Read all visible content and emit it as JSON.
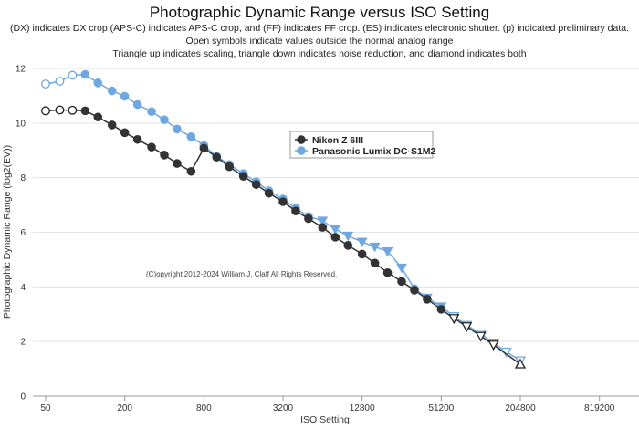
{
  "chart_data": {
    "type": "line",
    "title": "Photographic Dynamic Range versus ISO Setting",
    "subtitle": [
      "(DX) indicates DX crop (APS-C) indicates APS-C crop, and (FF) indicates FF crop. (ES) indicates electronic shutter. (p) indicated preliminary data.",
      "Open symbols indicate values outside the normal analog range",
      "Triangle up indicates scaling, triangle down indicates noise reduction, and diamond indicates both"
    ],
    "xlabel": "ISO Setting",
    "ylabel": "Photographic Dynamic Range (log2(EV))",
    "x_scale": "log2",
    "xlim": [
      50,
      1638400
    ],
    "ylim": [
      0,
      12
    ],
    "x_ticks": [
      "50",
      "200",
      "800",
      "3200",
      "12800",
      "51200",
      "204800",
      "819200"
    ],
    "y_ticks": [
      "0",
      "2",
      "4",
      "6",
      "8",
      "10",
      "12"
    ],
    "copyright": "(C)opyright 2012-2024 William J. Claff All Rights Reserved.",
    "legend_position": "center",
    "colors": {
      "nikon": "#333333",
      "panasonic": "#6fa8e0"
    },
    "series": [
      {
        "name": "Nikon Z 6III",
        "color": "#333333",
        "points": [
          {
            "iso": 50,
            "dr": 10.45,
            "marker": "open-circle"
          },
          {
            "iso": 64,
            "dr": 10.48,
            "marker": "open-circle"
          },
          {
            "iso": 80,
            "dr": 10.47,
            "marker": "open-circle"
          },
          {
            "iso": 100,
            "dr": 10.45,
            "marker": "circle"
          },
          {
            "iso": 125,
            "dr": 10.22,
            "marker": "circle"
          },
          {
            "iso": 160,
            "dr": 9.93,
            "marker": "circle"
          },
          {
            "iso": 200,
            "dr": 9.65,
            "marker": "circle"
          },
          {
            "iso": 250,
            "dr": 9.4,
            "marker": "circle"
          },
          {
            "iso": 320,
            "dr": 9.12,
            "marker": "circle"
          },
          {
            "iso": 400,
            "dr": 8.83,
            "marker": "circle"
          },
          {
            "iso": 500,
            "dr": 8.52,
            "marker": "circle"
          },
          {
            "iso": 640,
            "dr": 8.23,
            "marker": "circle"
          },
          {
            "iso": 800,
            "dr": 9.08,
            "marker": "circle"
          },
          {
            "iso": 1000,
            "dr": 8.75,
            "marker": "circle"
          },
          {
            "iso": 1250,
            "dr": 8.4,
            "marker": "circle"
          },
          {
            "iso": 1600,
            "dr": 8.05,
            "marker": "circle"
          },
          {
            "iso": 2000,
            "dr": 7.75,
            "marker": "circle"
          },
          {
            "iso": 2500,
            "dr": 7.43,
            "marker": "circle"
          },
          {
            "iso": 3200,
            "dr": 7.12,
            "marker": "circle"
          },
          {
            "iso": 4000,
            "dr": 6.78,
            "marker": "circle"
          },
          {
            "iso": 5000,
            "dr": 6.5,
            "marker": "circle"
          },
          {
            "iso": 6400,
            "dr": 6.18,
            "marker": "circle"
          },
          {
            "iso": 8000,
            "dr": 5.82,
            "marker": "circle"
          },
          {
            "iso": 10000,
            "dr": 5.52,
            "marker": "circle"
          },
          {
            "iso": 12800,
            "dr": 5.2,
            "marker": "circle"
          },
          {
            "iso": 16000,
            "dr": 4.87,
            "marker": "circle"
          },
          {
            "iso": 20000,
            "dr": 4.52,
            "marker": "circle"
          },
          {
            "iso": 25600,
            "dr": 4.2,
            "marker": "circle"
          },
          {
            "iso": 32000,
            "dr": 3.88,
            "marker": "circle"
          },
          {
            "iso": 40000,
            "dr": 3.55,
            "marker": "circle"
          },
          {
            "iso": 51200,
            "dr": 3.18,
            "marker": "circle"
          },
          {
            "iso": 64000,
            "dr": 2.85,
            "marker": "open-triangle-down"
          },
          {
            "iso": 80000,
            "dr": 2.55,
            "marker": "open-triangle-down"
          },
          {
            "iso": 102400,
            "dr": 2.2,
            "marker": "open-triangle-down"
          },
          {
            "iso": 128000,
            "dr": 1.88,
            "marker": "open-triangle-down"
          },
          {
            "iso": 204800,
            "dr": 1.17,
            "marker": "open-triangle-up"
          }
        ]
      },
      {
        "name": "Panasonic Lumix DC-S1M2",
        "color": "#6fa8e0",
        "points": [
          {
            "iso": 50,
            "dr": 11.43,
            "marker": "open-circle"
          },
          {
            "iso": 64,
            "dr": 11.53,
            "marker": "open-circle"
          },
          {
            "iso": 80,
            "dr": 11.75,
            "marker": "open-circle"
          },
          {
            "iso": 100,
            "dr": 11.78,
            "marker": "circle"
          },
          {
            "iso": 125,
            "dr": 11.47,
            "marker": "circle"
          },
          {
            "iso": 160,
            "dr": 11.18,
            "marker": "circle"
          },
          {
            "iso": 200,
            "dr": 10.98,
            "marker": "circle"
          },
          {
            "iso": 250,
            "dr": 10.68,
            "marker": "circle"
          },
          {
            "iso": 320,
            "dr": 10.42,
            "marker": "circle"
          },
          {
            "iso": 400,
            "dr": 10.12,
            "marker": "circle"
          },
          {
            "iso": 500,
            "dr": 9.78,
            "marker": "circle"
          },
          {
            "iso": 640,
            "dr": 9.5,
            "marker": "circle"
          },
          {
            "iso": 800,
            "dr": 9.18,
            "marker": "circle"
          },
          {
            "iso": 1000,
            "dr": 8.78,
            "marker": "circle"
          },
          {
            "iso": 1250,
            "dr": 8.48,
            "marker": "circle"
          },
          {
            "iso": 1600,
            "dr": 8.15,
            "marker": "circle"
          },
          {
            "iso": 2000,
            "dr": 7.85,
            "marker": "circle"
          },
          {
            "iso": 2500,
            "dr": 7.52,
            "marker": "circle"
          },
          {
            "iso": 3200,
            "dr": 7.22,
            "marker": "circle"
          },
          {
            "iso": 4000,
            "dr": 6.88,
            "marker": "circle"
          },
          {
            "iso": 5000,
            "dr": 6.58,
            "marker": "circle"
          },
          {
            "iso": 6400,
            "dr": 6.42,
            "marker": "triangle-down"
          },
          {
            "iso": 8000,
            "dr": 6.12,
            "marker": "triangle-down"
          },
          {
            "iso": 10000,
            "dr": 5.87,
            "marker": "triangle-down"
          },
          {
            "iso": 12800,
            "dr": 5.65,
            "marker": "triangle-down"
          },
          {
            "iso": 16000,
            "dr": 5.47,
            "marker": "triangle-down"
          },
          {
            "iso": 20000,
            "dr": 5.3,
            "marker": "triangle-down"
          },
          {
            "iso": 25600,
            "dr": 4.7,
            "marker": "triangle-down"
          },
          {
            "iso": 32000,
            "dr": 3.93,
            "marker": "circle"
          },
          {
            "iso": 40000,
            "dr": 3.6,
            "marker": "triangle-down"
          },
          {
            "iso": 51200,
            "dr": 3.28,
            "marker": "triangle-down"
          },
          {
            "iso": 64000,
            "dr": 2.92,
            "marker": "open-triangle-down"
          },
          {
            "iso": 80000,
            "dr": 2.6,
            "marker": "open-triangle-down"
          },
          {
            "iso": 102400,
            "dr": 2.28,
            "marker": "open-triangle-down"
          },
          {
            "iso": 128000,
            "dr": 1.95,
            "marker": "open-triangle-down"
          },
          {
            "iso": 160000,
            "dr": 1.62,
            "marker": "open-triangle-down"
          },
          {
            "iso": 204800,
            "dr": 1.3,
            "marker": "open-triangle-down"
          }
        ]
      }
    ]
  }
}
